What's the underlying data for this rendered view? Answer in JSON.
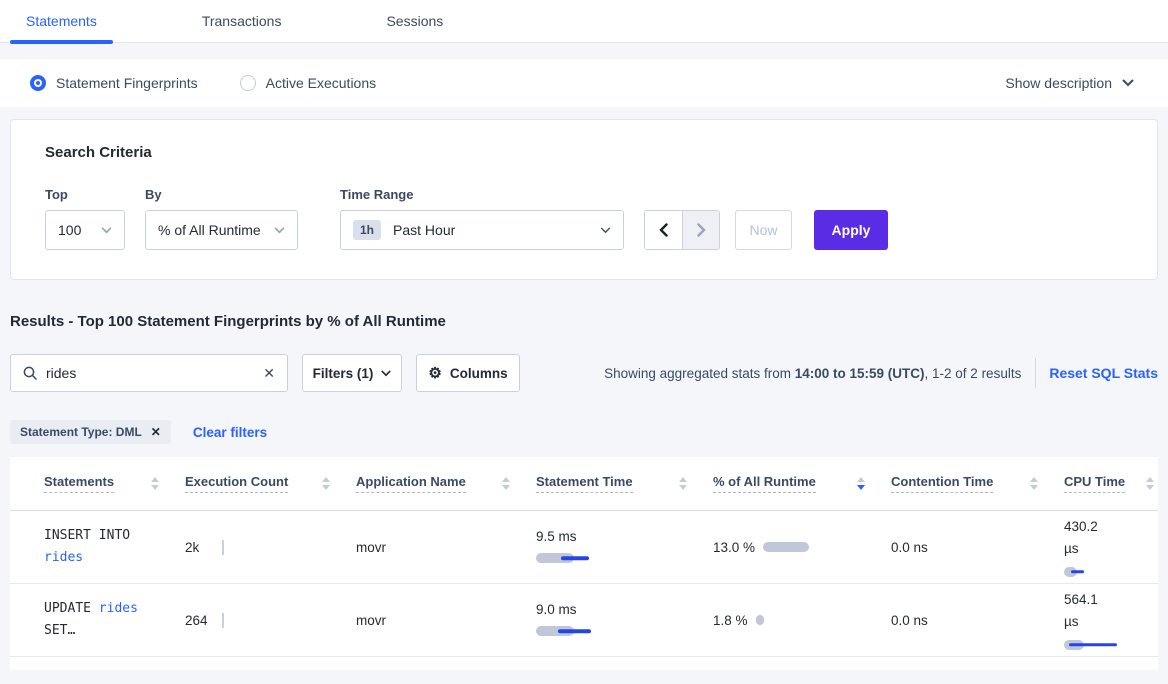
{
  "tabs": [
    {
      "label": "Statements",
      "active": true
    },
    {
      "label": "Transactions",
      "active": false
    },
    {
      "label": "Sessions",
      "active": false
    }
  ],
  "view_toggle": {
    "options": [
      {
        "label": "Statement Fingerprints",
        "selected": true
      },
      {
        "label": "Active Executions",
        "selected": false
      }
    ],
    "show_description_label": "Show description"
  },
  "search_criteria": {
    "title": "Search Criteria",
    "top": {
      "label": "Top",
      "value": "100"
    },
    "by": {
      "label": "By",
      "value": "% of All Runtime"
    },
    "time_range": {
      "label": "Time Range",
      "badge": "1h",
      "value": "Past Hour"
    },
    "now_label": "Now",
    "apply_label": "Apply"
  },
  "results": {
    "heading": "Results - Top 100 Statement Fingerprints by % of All Runtime",
    "search_value": "rides",
    "filters_label": "Filters (1)",
    "columns_label": "Columns",
    "showing_prefix": "Showing aggregated stats from ",
    "showing_bold": "14:00 to 15:59 (UTC)",
    "showing_suffix": ", 1-2 of 2 results",
    "reset_label": "Reset SQL Stats",
    "filter_chip_label": "Statement Type: DML",
    "clear_filters_label": "Clear filters"
  },
  "table": {
    "columns": [
      "Statements",
      "Execution Count",
      "Application Name",
      "Statement Time",
      "% of All Runtime",
      "Contention Time",
      "CPU Time"
    ],
    "sorted_column": "% of All Runtime",
    "sort_direction": "desc",
    "rows": [
      {
        "statement_text": "INSERT INTO",
        "statement_link": "rides",
        "statement_suffix": "",
        "execution_count": "2k",
        "application_name": "movr",
        "statement_time": "9.5 ms",
        "pct_runtime": "13.0 %",
        "contention_time": "0.0 ns",
        "cpu_time": "430.2 µs",
        "bars": {
          "stmt_time": {
            "gray": 38,
            "blue_start": 25,
            "blue_len": 28
          },
          "pct": {
            "gray": 46
          },
          "cpu": {
            "gray": 13,
            "blue_start": 7,
            "blue_len": 13
          }
        }
      },
      {
        "statement_text": "UPDATE",
        "statement_link": "rides",
        "statement_suffix": "SET…",
        "execution_count": "264",
        "application_name": "movr",
        "statement_time": "9.0 ms",
        "pct_runtime": "1.8 %",
        "contention_time": "0.0 ns",
        "cpu_time": "564.1 µs",
        "bars": {
          "stmt_time": {
            "gray": 38,
            "blue_start": 22,
            "blue_len": 33
          },
          "pct": {
            "gray": 8
          },
          "cpu": {
            "gray": 20,
            "blue_start": 5,
            "blue_len": 48
          }
        }
      }
    ]
  },
  "colors": {
    "accent_blue": "#2962ff",
    "apply_purple": "#5b2ce5",
    "bar_gray": "#c0c7d9",
    "bar_blue": "#2545e8"
  }
}
